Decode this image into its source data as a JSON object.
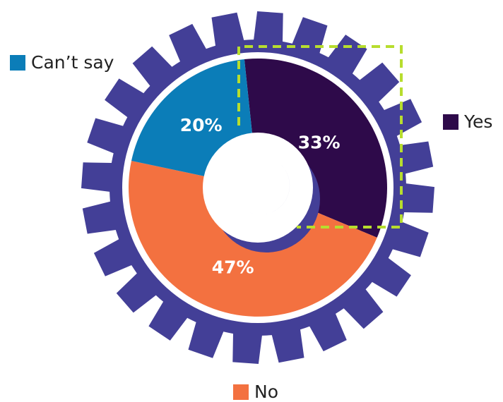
{
  "chart_data": {
    "type": "pie",
    "categories": [
      "Yes",
      "No",
      "Can’t say"
    ],
    "values": [
      33,
      47,
      20
    ],
    "data_labels": [
      "33%",
      "47%",
      "20%"
    ],
    "colors": {
      "Yes": "#2e0a4a",
      "No": "#f37140",
      "Can’t say": "#0b7db8",
      "gear": "#433f97",
      "highlight": "#b7dd2e"
    },
    "style": "donut inside gear with crescent hub"
  },
  "legend": {
    "cant_say": "Can’t say",
    "yes": "Yes",
    "no": "No"
  }
}
